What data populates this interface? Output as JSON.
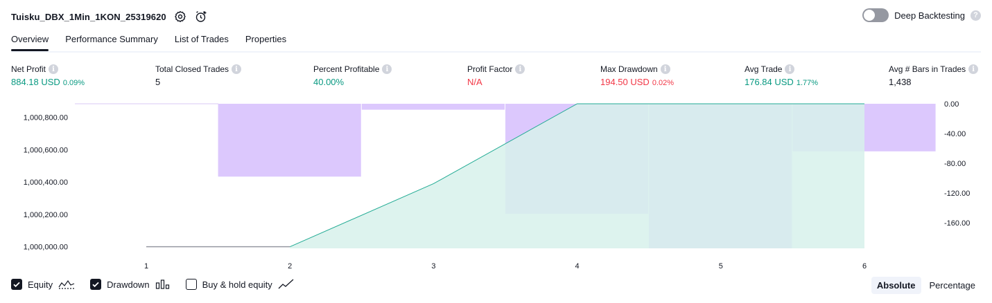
{
  "header": {
    "title": "Tuisku_DBX_1Min_1KON_25319620",
    "deep_backtesting_label": "Deep Backtesting"
  },
  "tabs": [
    {
      "label": "Overview"
    },
    {
      "label": "Performance Summary"
    },
    {
      "label": "List of Trades"
    },
    {
      "label": "Properties"
    }
  ],
  "metrics": [
    {
      "label": "Net Profit",
      "value": "884.18 USD",
      "pct": "0.09%",
      "color": "green"
    },
    {
      "label": "Total Closed Trades",
      "value": "5",
      "pct": "",
      "color": "neutral"
    },
    {
      "label": "Percent Profitable",
      "value": "40.00%",
      "pct": "",
      "color": "green"
    },
    {
      "label": "Profit Factor",
      "value": "N/A",
      "pct": "",
      "color": "red"
    },
    {
      "label": "Max Drawdown",
      "value": "194.50 USD",
      "pct": "0.02%",
      "color": "red"
    },
    {
      "label": "Avg Trade",
      "value": "176.84 USD",
      "pct": "1.77%",
      "color": "green"
    },
    {
      "label": "Avg # Bars in Trades",
      "value": "1,438",
      "pct": "",
      "color": "neutral"
    }
  ],
  "chart_data": {
    "type": "area",
    "x": [
      1,
      2,
      3,
      4,
      5,
      6
    ],
    "x_ticks": [
      "1",
      "2",
      "3",
      "4",
      "5",
      "6"
    ],
    "equity": {
      "values": [
        1000000,
        1000000,
        1000390,
        1000884,
        1000884,
        1000884
      ],
      "ylim": [
        999990,
        1000884
      ],
      "y_ticks": [
        "1,000,000.00",
        "1,000,200.00",
        "1,000,400.00",
        "1,000,600.00",
        "1,000,800.00"
      ],
      "y_tick_values": [
        1000000,
        1000200,
        1000400,
        1000600,
        1000800
      ],
      "line_color": "#22ab94",
      "fill_color": "#d7f1eb"
    },
    "drawdown": {
      "bars": [
        {
          "x": 2,
          "value": -98
        },
        {
          "x": 3,
          "value": -8
        },
        {
          "x": 4,
          "value": -148
        },
        {
          "x": 5,
          "value": -194.5
        },
        {
          "x": 6,
          "value": -64
        }
      ],
      "ylim": [
        -194.5,
        0
      ],
      "y_ticks": [
        "0.00",
        "-40.00",
        "-80.00",
        "-120.00",
        "-160.00"
      ],
      "y_tick_values": [
        0,
        -40,
        -80,
        -120,
        -160
      ],
      "bar_color": "#c6a6fb"
    },
    "buy_hold_visible": false
  },
  "legend": [
    {
      "label": "Equity",
      "checked": true
    },
    {
      "label": "Drawdown",
      "checked": true
    },
    {
      "label": "Buy & hold equity",
      "checked": false
    }
  ],
  "modes": [
    {
      "label": "Absolute",
      "active": true
    },
    {
      "label": "Percentage",
      "active": false
    }
  ]
}
